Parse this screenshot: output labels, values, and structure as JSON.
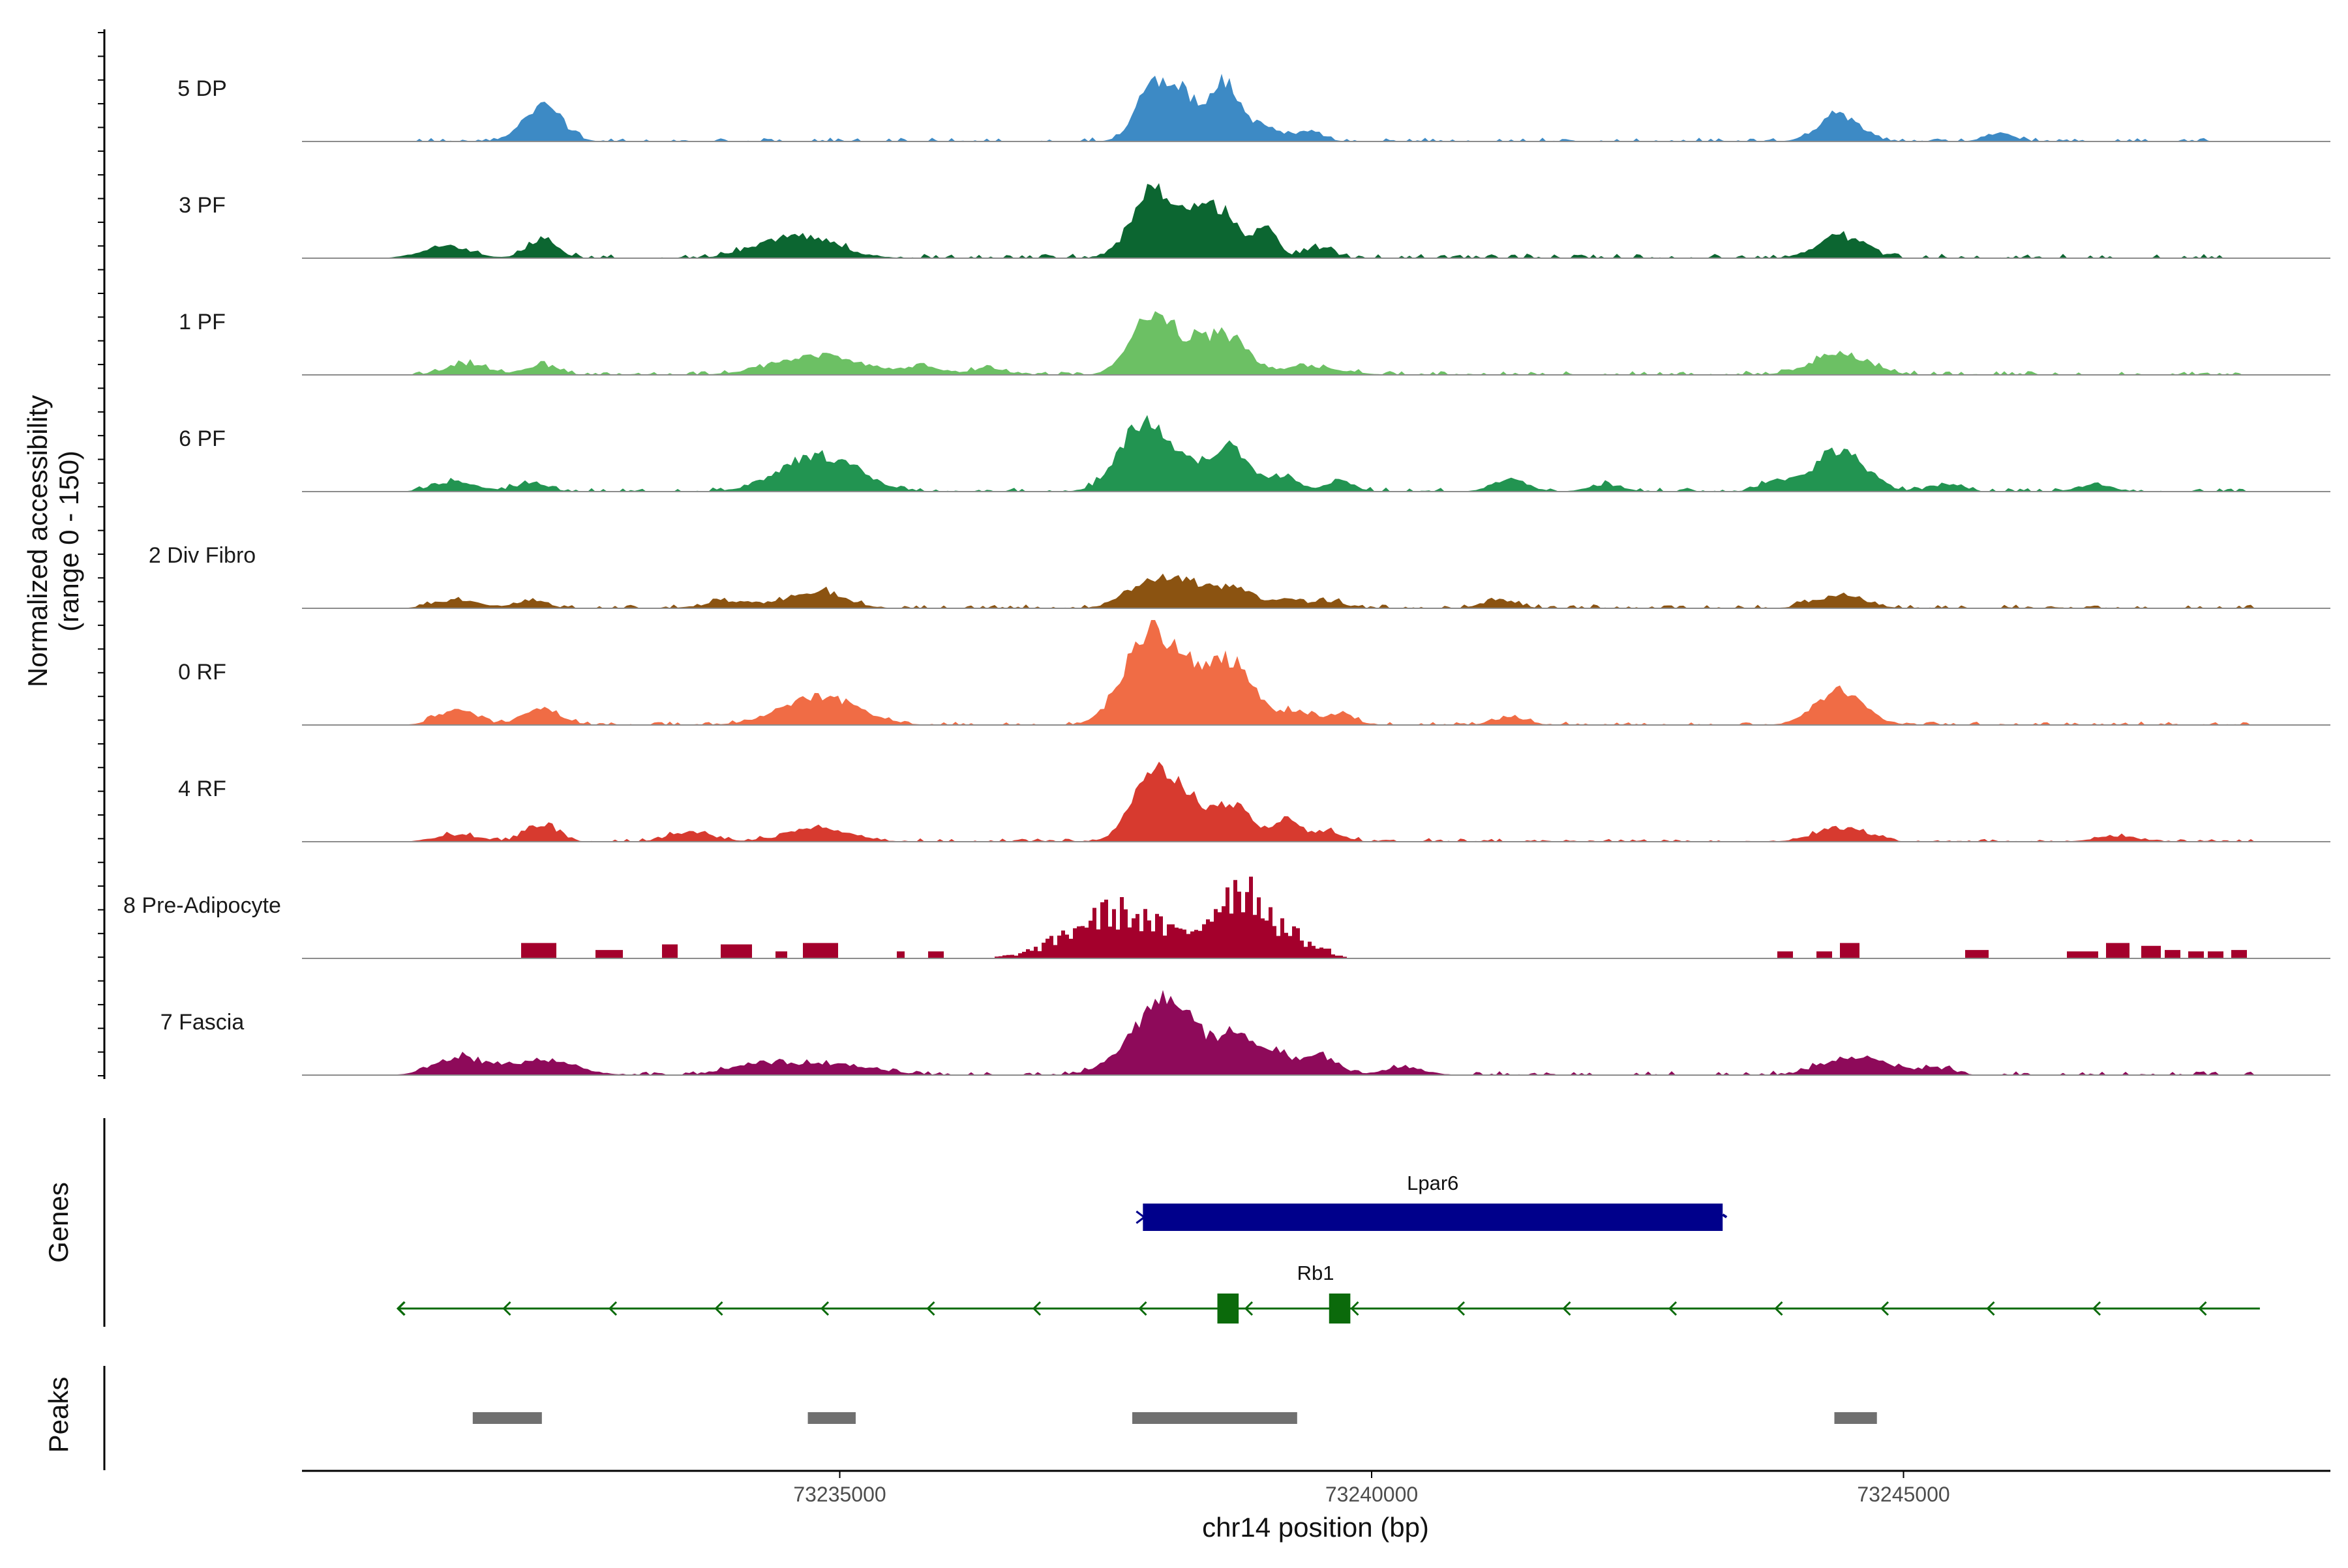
{
  "chart_data": {
    "type": "area",
    "title": "",
    "region": {
      "chrom": "chr14",
      "start": 73230100,
      "end": 73248400
    },
    "ylabel_line1": "Normalized accessibility",
    "ylabel_line2": "(range 0 - 150)",
    "ylim": [
      0,
      150
    ],
    "xlabel": "chr14 position (bp)",
    "xticks": [
      73235000,
      73240000,
      73245000
    ],
    "xtick_labels": [
      "73235000",
      "73240000",
      "73245000"
    ],
    "genes_label": "Genes",
    "peaks_label": "Peaks",
    "tracks": [
      {
        "name": "5 DP",
        "color": "#3D8AC5",
        "style": "smooth",
        "noise": 0.035,
        "noiseRange": [
          73231000,
          73248000
        ],
        "peaks": [
          [
            73232200,
            52,
            180
          ],
          [
            73237950,
            75,
            160
          ],
          [
            73238200,
            55,
            130
          ],
          [
            73238600,
            85,
            160
          ],
          [
            73239000,
            20,
            130
          ],
          [
            73239400,
            15,
            130
          ],
          [
            73244400,
            38,
            190
          ],
          [
            73245900,
            12,
            130
          ]
        ]
      },
      {
        "name": "3 PF",
        "color": "#0C6631",
        "style": "smooth",
        "noise": 0.04,
        "noiseRange": [
          73231000,
          73248300
        ],
        "peaks": [
          [
            73231300,
            18,
            220
          ],
          [
            73232200,
            28,
            140
          ],
          [
            73234600,
            32,
            350
          ],
          [
            73237950,
            90,
            200
          ],
          [
            73238300,
            40,
            150
          ],
          [
            73238600,
            65,
            160
          ],
          [
            73239000,
            42,
            110
          ],
          [
            73239500,
            15,
            130
          ],
          [
            73244400,
            30,
            220
          ]
        ]
      },
      {
        "name": "1 PF",
        "color": "#6CC064",
        "style": "smooth",
        "noise": 0.035,
        "noiseRange": [
          73231000,
          73248300
        ],
        "peaks": [
          [
            73231500,
            15,
            200
          ],
          [
            73232200,
            14,
            150
          ],
          [
            73234800,
            28,
            400
          ],
          [
            73235800,
            10,
            200
          ],
          [
            73236400,
            10,
            150
          ],
          [
            73237950,
            88,
            200
          ],
          [
            73238400,
            38,
            160
          ],
          [
            73238700,
            45,
            160
          ],
          [
            73239400,
            12,
            300
          ],
          [
            73244400,
            30,
            260
          ]
        ]
      },
      {
        "name": "6 PF",
        "color": "#229451",
        "style": "smooth",
        "noise": 0.035,
        "noiseRange": [
          73231000,
          73248200
        ],
        "peaks": [
          [
            73231400,
            14,
            200
          ],
          [
            73232100,
            12,
            150
          ],
          [
            73234800,
            50,
            360
          ],
          [
            73237850,
            98,
            220
          ],
          [
            73238300,
            30,
            160
          ],
          [
            73238700,
            60,
            180
          ],
          [
            73239200,
            22,
            120
          ],
          [
            73239700,
            16,
            130
          ],
          [
            73241300,
            18,
            160
          ],
          [
            73242200,
            10,
            160
          ],
          [
            73243800,
            14,
            150
          ],
          [
            73244400,
            58,
            240
          ],
          [
            73245400,
            10,
            150
          ],
          [
            73246800,
            10,
            160
          ]
        ]
      },
      {
        "name": "2 Div Fibro",
        "color": "#8B5311",
        "style": "smooth",
        "noise": 0.035,
        "noiseRange": [
          73231000,
          73248300
        ],
        "peaks": [
          [
            73231400,
            12,
            200
          ],
          [
            73232100,
            10,
            150
          ],
          [
            73234000,
            10,
            250
          ],
          [
            73234800,
            24,
            250
          ],
          [
            73237950,
            40,
            230
          ],
          [
            73238300,
            22,
            160
          ],
          [
            73238700,
            32,
            180
          ],
          [
            73239200,
            14,
            140
          ],
          [
            73239600,
            10,
            130
          ],
          [
            73241200,
            12,
            160
          ],
          [
            73244400,
            18,
            230
          ]
        ]
      },
      {
        "name": "0 RF",
        "color": "#F06C45",
        "style": "smooth",
        "noise": 0.03,
        "noiseRange": [
          73231000,
          73248300
        ],
        "peaks": [
          [
            73231400,
            22,
            180
          ],
          [
            73232200,
            22,
            180
          ],
          [
            73234800,
            40,
            350
          ],
          [
            73237900,
            135,
            230
          ],
          [
            73238300,
            50,
            170
          ],
          [
            73238700,
            88,
            210
          ],
          [
            73239300,
            20,
            130
          ],
          [
            73239700,
            16,
            140
          ],
          [
            73241300,
            10,
            160
          ],
          [
            73244400,
            50,
            220
          ]
        ]
      },
      {
        "name": "4 RF",
        "color": "#D73A2F",
        "style": "smooth",
        "noise": 0.03,
        "noiseRange": [
          73231000,
          73248300
        ],
        "peaks": [
          [
            73231400,
            10,
            200
          ],
          [
            73232200,
            24,
            150
          ],
          [
            73233600,
            14,
            200
          ],
          [
            73234800,
            18,
            300
          ],
          [
            73237950,
            98,
            200
          ],
          [
            73238300,
            48,
            150
          ],
          [
            73238700,
            52,
            170
          ],
          [
            73239200,
            32,
            120
          ],
          [
            73239600,
            14,
            140
          ],
          [
            73244400,
            20,
            230
          ],
          [
            73247000,
            8,
            200
          ]
        ]
      },
      {
        "name": "8 Pre-Adipocyte",
        "color": "#A4002C",
        "style": "jagged",
        "noise": 0.0,
        "noiseRange": [
          73231000,
          73248300
        ],
        "peaks": [
          [
            73237600,
            72,
            440
          ],
          [
            73238750,
            110,
            260
          ],
          [
            73239300,
            22,
            200
          ]
        ],
        "blocks": [
          [
            73232000,
            73232300,
            22
          ],
          [
            73232700,
            73232950,
            12
          ],
          [
            73233300,
            73233450,
            20
          ],
          [
            73233850,
            73234150,
            20
          ],
          [
            73234650,
            73234950,
            22
          ],
          [
            73234380,
            73234480,
            10
          ],
          [
            73235500,
            73235600,
            10
          ],
          [
            73235800,
            73235950,
            10
          ],
          [
            73237150,
            73237250,
            28
          ],
          [
            73239450,
            73239600,
            14
          ],
          [
            73243800,
            73243950,
            10
          ],
          [
            73244150,
            73244300,
            10
          ],
          [
            73244400,
            73244550,
            22
          ],
          [
            73245550,
            73245800,
            12
          ],
          [
            73246500,
            73246800,
            10
          ],
          [
            73246900,
            73247100,
            22
          ],
          [
            73247200,
            73247400,
            18
          ],
          [
            73247450,
            73247600,
            12
          ],
          [
            73247650,
            73247800,
            10
          ],
          [
            73247850,
            73248000,
            10
          ],
          [
            73248050,
            73248200,
            12
          ]
        ]
      },
      {
        "name": "7 Fascia",
        "color": "#8E0A5A",
        "style": "smooth",
        "noise": 0.035,
        "noiseRange": [
          73231000,
          73248300
        ],
        "peaks": [
          [
            73231400,
            24,
            220
          ],
          [
            73232200,
            22,
            300
          ],
          [
            73234200,
            14,
            250
          ],
          [
            73234900,
            16,
            400
          ],
          [
            73237750,
            30,
            250
          ],
          [
            73238000,
            82,
            180
          ],
          [
            73238300,
            52,
            150
          ],
          [
            73238700,
            60,
            180
          ],
          [
            73239100,
            30,
            130
          ],
          [
            73239500,
            28,
            170
          ],
          [
            73240300,
            10,
            200
          ],
          [
            73244300,
            14,
            200
          ],
          [
            73244700,
            22,
            220
          ],
          [
            73245300,
            10,
            160
          ]
        ]
      }
    ],
    "genes": [
      {
        "name": "Lpar6",
        "start": 73237850,
        "end": 73243300,
        "strand": "+",
        "color": "#00008B",
        "kind": "box"
      },
      {
        "name": "Rb1",
        "start": 73230850,
        "end": 73248350,
        "strand": "-",
        "color": "#0B6A0B",
        "kind": "line",
        "exons": [
          [
            73238550,
            73238750
          ],
          [
            73239600,
            73239800
          ]
        ]
      }
    ],
    "peaks_regions": [
      [
        73231550,
        73232200
      ],
      [
        73234700,
        73235150
      ],
      [
        73237750,
        73239300
      ],
      [
        73244350,
        73244750
      ]
    ],
    "peak_color": "#707070"
  }
}
